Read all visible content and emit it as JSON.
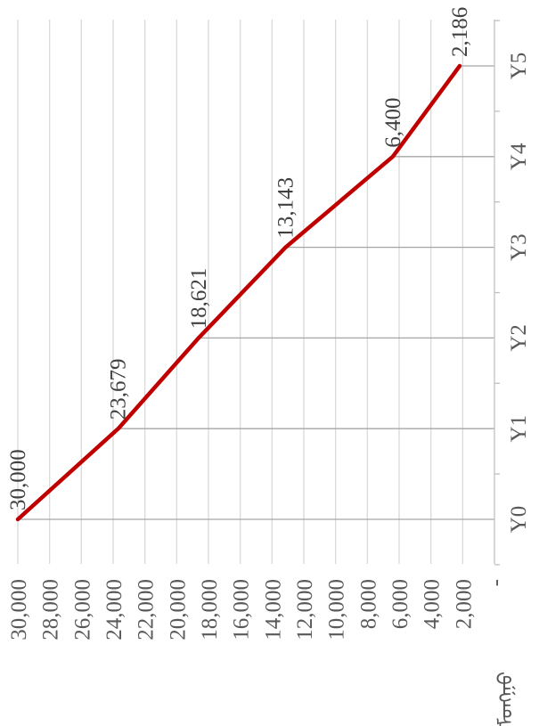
{
  "chart_data": {
    "type": "line",
    "orientation": "rotated-90-clockwise",
    "categories": [
      "Y0",
      "Y1",
      "Y2",
      "Y3",
      "Y4",
      "Y5"
    ],
    "series": [
      {
        "values": [
          30000,
          23679,
          18621,
          13143,
          6400,
          2186
        ],
        "value_labels": [
          "30,000",
          "23,679",
          "18,621",
          "13,143",
          "6,400",
          "2,186"
        ],
        "color": "#c00000"
      }
    ],
    "value_ticks": [
      {
        "value": 30000,
        "label": "30,000"
      },
      {
        "value": 28000,
        "label": "28,000"
      },
      {
        "value": 26000,
        "label": "26,000"
      },
      {
        "value": 24000,
        "label": "24,000"
      },
      {
        "value": 22000,
        "label": "22,000"
      },
      {
        "value": 20000,
        "label": "20,000"
      },
      {
        "value": 18000,
        "label": "18,000"
      },
      {
        "value": 16000,
        "label": "16,000"
      },
      {
        "value": 14000,
        "label": "14,000"
      },
      {
        "value": 12000,
        "label": "12,000"
      },
      {
        "value": 10000,
        "label": "10,000"
      },
      {
        "value": 8000,
        "label": "8,000"
      },
      {
        "value": 6000,
        "label": "6,000"
      },
      {
        "value": 4000,
        "label": "4,000"
      },
      {
        "value": 2000,
        "label": "2,000"
      },
      {
        "value": 0,
        "label": "-"
      }
    ],
    "ylim": [
      0,
      30000
    ],
    "ylabel": "ᠮᠤᠩᠭᠤ",
    "grid": true,
    "gridline_color": "#d9d9d9",
    "axis_color": "#bfbfbf"
  }
}
